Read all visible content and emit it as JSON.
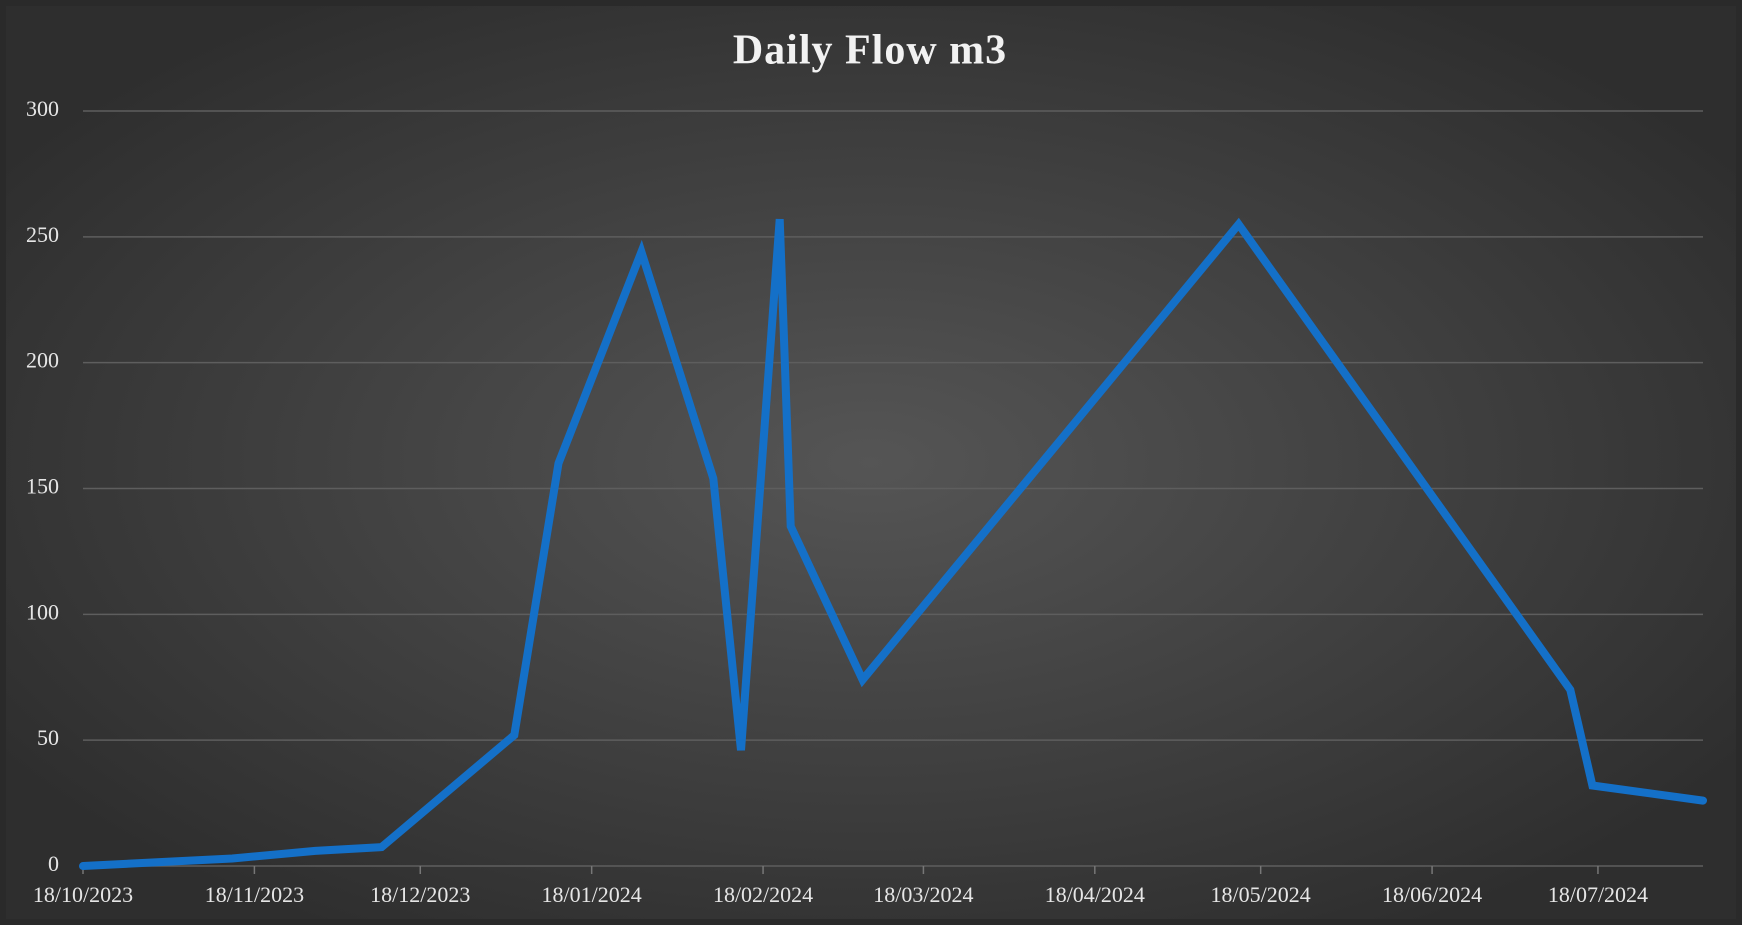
{
  "chart_data": {
    "type": "line",
    "title": "Daily Flow m3",
    "x": [
      "2023-10-18",
      "2023-11-14",
      "2023-11-29",
      "2023-12-11",
      "2024-01-04",
      "2024-01-12",
      "2024-01-27",
      "2024-02-09",
      "2024-02-14",
      "2024-02-21",
      "2024-02-23",
      "2024-03-07",
      "2024-05-14",
      "2024-07-13",
      "2024-07-17",
      "2024-08-06"
    ],
    "series": [
      {
        "color": "#1470c8",
        "values": [
          0,
          3,
          6,
          7.5,
          52,
          160,
          244,
          154,
          46,
          257,
          135,
          74,
          255,
          70,
          32,
          26
        ]
      }
    ],
    "xlim": [
      "2023-10-18",
      "2024-08-06"
    ],
    "xticks": [
      {
        "value": "2023-10-18",
        "label": "18/10/2023"
      },
      {
        "value": "2023-11-18",
        "label": "18/11/2023"
      },
      {
        "value": "2023-12-18",
        "label": "18/12/2023"
      },
      {
        "value": "2024-01-18",
        "label": "18/01/2024"
      },
      {
        "value": "2024-02-18",
        "label": "18/02/2024"
      },
      {
        "value": "2024-03-18",
        "label": "18/03/2024"
      },
      {
        "value": "2024-04-18",
        "label": "18/04/2024"
      },
      {
        "value": "2024-05-18",
        "label": "18/05/2024"
      },
      {
        "value": "2024-06-18",
        "label": "18/06/2024"
      },
      {
        "value": "2024-07-18",
        "label": "18/07/2024"
      }
    ],
    "ylim": [
      0,
      300
    ],
    "yticks": [
      0,
      50,
      100,
      150,
      200,
      250,
      300
    ],
    "grid": true
  }
}
